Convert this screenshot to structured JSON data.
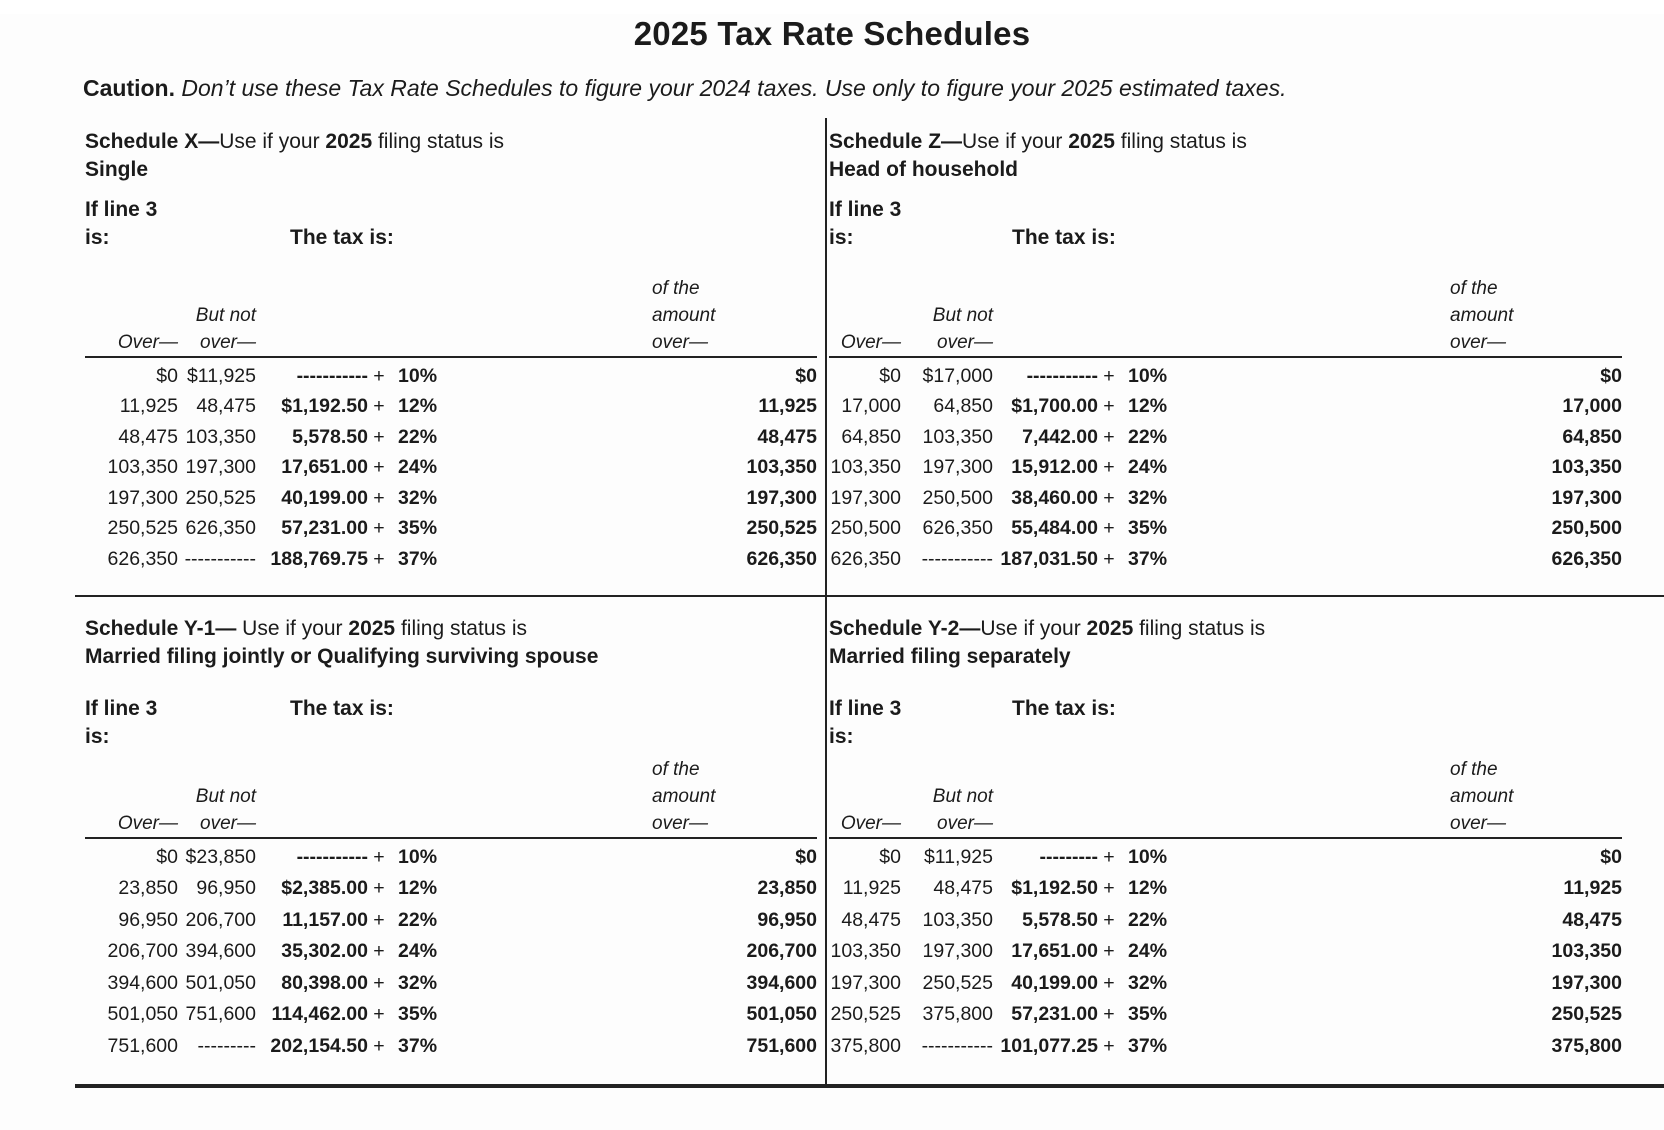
{
  "page": {
    "title": "2025 Tax Rate Schedules"
  },
  "caution": {
    "label": "Caution.",
    "text": "Don’t use these Tax Rate Schedules to figure your 2024 taxes. Use only to figure your 2025 estimated taxes."
  },
  "labels": {
    "if_line3": "If line 3",
    "is": "is:",
    "tax_is": "The tax is:",
    "over": "Over—",
    "but_not": "But not",
    "over2": "over—",
    "of_the": "of the",
    "amount": "amount",
    "over3": "over—",
    "plus": "+"
  },
  "schedules": [
    {
      "id": "X",
      "title_bold": "Schedule X—",
      "title_mid": "Use if your ",
      "title_year": "2025",
      "title_tail": " filing status is",
      "status": "Single",
      "rows": [
        {
          "over": "$0",
          "butnot": "$11,925",
          "tax": "-----------",
          "pct": "10%",
          "amt": "$0"
        },
        {
          "over": "11,925",
          "butnot": "48,475",
          "tax": "$1,192.50",
          "pct": "12%",
          "amt": "11,925"
        },
        {
          "over": "48,475",
          "butnot": "103,350",
          "tax": "5,578.50",
          "pct": "22%",
          "amt": "48,475"
        },
        {
          "over": "103,350",
          "butnot": "197,300",
          "tax": "17,651.00",
          "pct": "24%",
          "amt": "103,350"
        },
        {
          "over": "197,300",
          "butnot": "250,525",
          "tax": "40,199.00",
          "pct": "32%",
          "amt": "197,300"
        },
        {
          "over": "250,525",
          "butnot": "626,350",
          "tax": "57,231.00",
          "pct": "35%",
          "amt": "250,525"
        },
        {
          "over": "626,350",
          "butnot": "-----------",
          "tax": "188,769.75",
          "pct": "37%",
          "amt": "626,350"
        }
      ]
    },
    {
      "id": "Z",
      "title_bold": "Schedule Z—",
      "title_mid": "Use if your ",
      "title_year": "2025",
      "title_tail": " filing status is",
      "status": "Head of household",
      "rows": [
        {
          "over": "$0",
          "butnot": "$17,000",
          "tax": "-----------",
          "pct": "10%",
          "amt": "$0"
        },
        {
          "over": "17,000",
          "butnot": "64,850",
          "tax": "$1,700.00",
          "pct": "12%",
          "amt": "17,000"
        },
        {
          "over": "64,850",
          "butnot": "103,350",
          "tax": "7,442.00",
          "pct": "22%",
          "amt": "64,850"
        },
        {
          "over": "103,350",
          "butnot": "197,300",
          "tax": "15,912.00",
          "pct": "24%",
          "amt": "103,350"
        },
        {
          "over": "197,300",
          "butnot": "250,500",
          "tax": "38,460.00",
          "pct": "32%",
          "amt": "197,300"
        },
        {
          "over": "250,500",
          "butnot": "626,350",
          "tax": "55,484.00",
          "pct": "35%",
          "amt": "250,500"
        },
        {
          "over": "626,350",
          "butnot": "-----------",
          "tax": "187,031.50",
          "pct": "37%",
          "amt": "626,350"
        }
      ]
    },
    {
      "id": "Y-1",
      "title_bold": "Schedule Y-1—",
      "title_mid": " Use if your ",
      "title_year": "2025",
      "title_tail": " filing status is",
      "status": "Married filing jointly or Qualifying surviving spouse",
      "rows": [
        {
          "over": "$0",
          "butnot": "$23,850",
          "tax": "-----------",
          "pct": "10%",
          "amt": "$0"
        },
        {
          "over": "23,850",
          "butnot": "96,950",
          "tax": "$2,385.00",
          "pct": "12%",
          "amt": "23,850"
        },
        {
          "over": "96,950",
          "butnot": "206,700",
          "tax": "11,157.00",
          "pct": "22%",
          "amt": "96,950"
        },
        {
          "over": "206,700",
          "butnot": "394,600",
          "tax": "35,302.00",
          "pct": "24%",
          "amt": "206,700"
        },
        {
          "over": "394,600",
          "butnot": "501,050",
          "tax": "80,398.00",
          "pct": "32%",
          "amt": "394,600"
        },
        {
          "over": "501,050",
          "butnot": "751,600",
          "tax": "114,462.00",
          "pct": "35%",
          "amt": "501,050"
        },
        {
          "over": "751,600",
          "butnot": "---------",
          "tax": "202,154.50",
          "pct": "37%",
          "amt": "751,600"
        }
      ]
    },
    {
      "id": "Y-2",
      "title_bold": "Schedule Y-2—",
      "title_mid": "Use if your ",
      "title_year": "2025",
      "title_tail": " filing status is",
      "status": "Married filing separately",
      "rows": [
        {
          "over": "$0",
          "butnot": "$11,925",
          "tax": "---------",
          "pct": "10%",
          "amt": "$0"
        },
        {
          "over": "11,925",
          "butnot": "48,475",
          "tax": "$1,192.50",
          "pct": "12%",
          "amt": "11,925"
        },
        {
          "over": "48,475",
          "butnot": "103,350",
          "tax": "5,578.50",
          "pct": "22%",
          "amt": "48,475"
        },
        {
          "over": "103,350",
          "butnot": "197,300",
          "tax": "17,651.00",
          "pct": "24%",
          "amt": "103,350"
        },
        {
          "over": "197,300",
          "butnot": "250,525",
          "tax": "40,199.00",
          "pct": "32%",
          "amt": "197,300"
        },
        {
          "over": "250,525",
          "butnot": "375,800",
          "tax": "57,231.00",
          "pct": "35%",
          "amt": "250,525"
        },
        {
          "over": "375,800",
          "butnot": "-----------",
          "tax": "101,077.25",
          "pct": "37%",
          "amt": "375,800"
        }
      ]
    }
  ]
}
